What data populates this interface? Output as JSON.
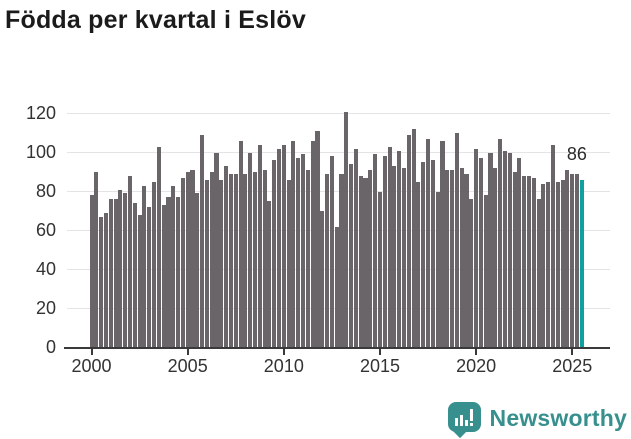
{
  "title": "Födda per kvartal i Eslöv",
  "chart_data": {
    "type": "bar",
    "title": "Födda per kvartal i Eslöv",
    "x_start": "2000-Q1",
    "x_end": "2025-Q3",
    "x_tick_labels": [
      "2000",
      "2005",
      "2010",
      "2015",
      "2020",
      "2025"
    ],
    "y_ticks": [
      0,
      20,
      40,
      60,
      80,
      100,
      120
    ],
    "ylim": [
      0,
      123
    ],
    "grid": true,
    "legend": "none",
    "series": [
      {
        "name": "Födda per kvartal",
        "values": [
          78,
          90,
          67,
          69,
          76,
          76,
          81,
          79,
          88,
          74,
          68,
          83,
          72,
          85,
          103,
          73,
          77,
          83,
          77,
          87,
          90,
          91,
          79,
          109,
          86,
          90,
          100,
          86,
          93,
          89,
          89,
          106,
          89,
          100,
          90,
          104,
          91,
          75,
          96,
          102,
          104,
          86,
          106,
          97,
          99,
          91,
          106,
          111,
          70,
          89,
          98,
          62,
          89,
          121,
          94,
          102,
          88,
          87,
          91,
          99,
          80,
          98,
          103,
          93,
          101,
          92,
          109,
          112,
          85,
          95,
          107,
          96,
          80,
          106,
          91,
          91,
          110,
          92,
          89,
          76,
          102,
          97,
          78,
          100,
          92,
          107,
          101,
          100,
          90,
          97,
          88,
          88,
          87,
          76,
          84,
          85,
          104,
          85,
          86,
          91,
          89,
          89,
          86
        ]
      }
    ],
    "highlight": {
      "index": 102,
      "value": 86,
      "label": "86"
    },
    "colors": {
      "bar": "#696569",
      "highlight": "#0fa0a0",
      "grid": "#e4e4e4",
      "axis": "#3a3a3a",
      "tick_text": "#333333",
      "title": "#1b1b1b"
    }
  },
  "branding": {
    "name": "Newsworthy",
    "color": "#37908e",
    "icon": "newsworthy-speech-bubble-chart-icon"
  }
}
